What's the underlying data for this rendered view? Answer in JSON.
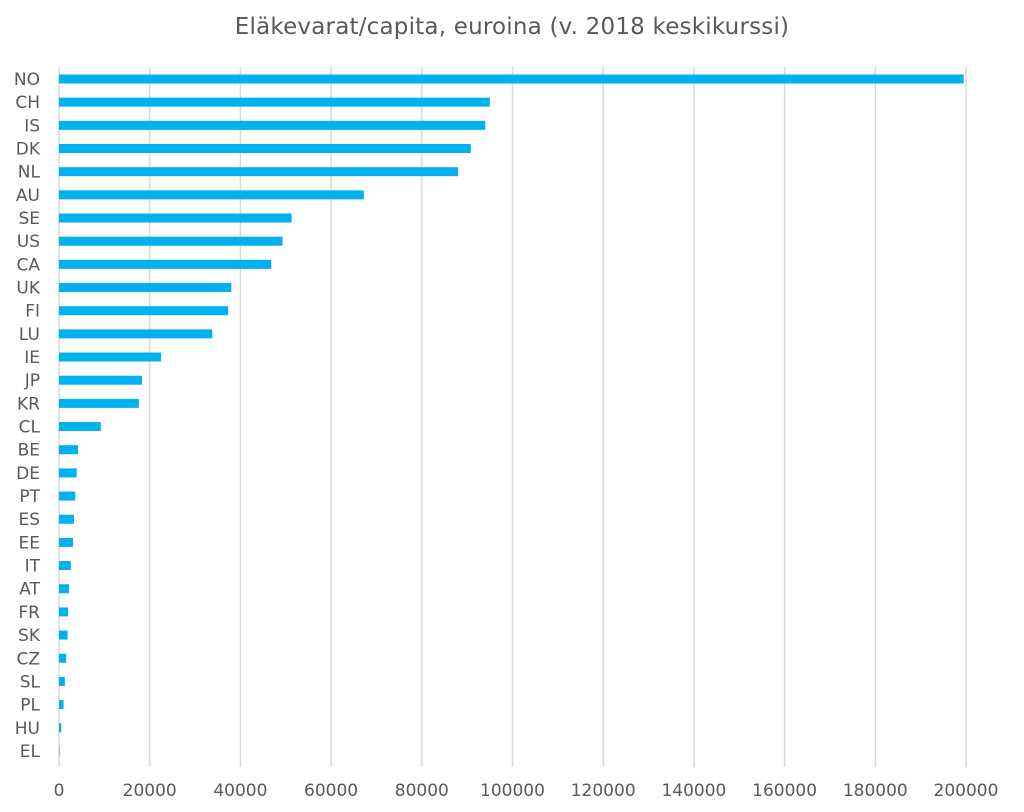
{
  "chart_data": {
    "type": "bar",
    "orientation": "horizontal",
    "title": "Eläkevarat/capita, euroina (v. 2018 keskikurssi)",
    "xlabel": "",
    "ylabel": "",
    "categories": [
      "NO",
      "CH",
      "IS",
      "DK",
      "NL",
      "AU",
      "SE",
      "US",
      "CA",
      "UK",
      "FI",
      "LU",
      "IE",
      "JP",
      "KR",
      "CL",
      "BE",
      "DE",
      "PT",
      "ES",
      "EE",
      "IT",
      "AT",
      "FR",
      "SK",
      "CZ",
      "SL",
      "PL",
      "HU",
      "EL"
    ],
    "values": [
      199500,
      95000,
      94000,
      90800,
      88000,
      67200,
      51300,
      49300,
      46800,
      38000,
      37300,
      33800,
      22500,
      18300,
      17600,
      9200,
      4200,
      3900,
      3600,
      3300,
      3100,
      2600,
      2200,
      2000,
      1900,
      1600,
      1300,
      1000,
      500,
      100
    ],
    "xlim": [
      0,
      200000
    ],
    "xticks": [
      0,
      20000,
      40000,
      60000,
      80000,
      100000,
      120000,
      140000,
      160000,
      180000,
      200000
    ],
    "grid": "vertical",
    "legend": "none",
    "bar_color": "#00B0F0",
    "grid_color": "#D9D9D9",
    "text_color": "#595959"
  }
}
